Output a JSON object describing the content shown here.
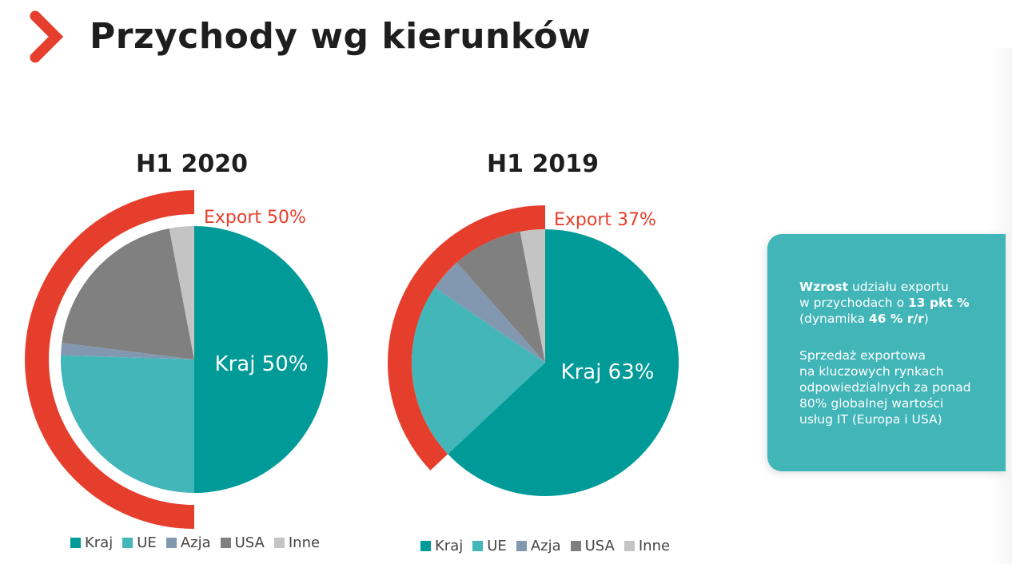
{
  "page": {
    "title": "Przychody wg kierunków",
    "accent_color": "#e63e2c"
  },
  "chart_data": [
    {
      "type": "pie",
      "title": "H1 2020",
      "categories": [
        "Kraj",
        "UE",
        "Azja",
        "USA",
        "Inne"
      ],
      "values": [
        50,
        25.5,
        1.5,
        20,
        3
      ],
      "colors": [
        "#009a98",
        "#42b6b8",
        "#8198b0",
        "#808080",
        "#c4c4c4"
      ],
      "highlight_arc": {
        "label": "Export 50%",
        "value": 50,
        "color": "#e63e2c"
      },
      "inner_label": "Kraj 50%",
      "legend": [
        "Kraj",
        "UE",
        "Azja",
        "USA",
        "Inne"
      ],
      "legend_position": "bottom"
    },
    {
      "type": "pie",
      "title": "H1 2019",
      "categories": [
        "Kraj",
        "UE",
        "Azja",
        "USA",
        "Inne"
      ],
      "values": [
        63,
        21.5,
        4,
        8.5,
        3
      ],
      "colors": [
        "#009a98",
        "#42b6b8",
        "#8198b0",
        "#808080",
        "#c4c4c4"
      ],
      "highlight_arc": {
        "label": "Export 37%",
        "value": 37,
        "color": "#e63e2c"
      },
      "inner_label": "Kraj 63%",
      "legend": [
        "Kraj",
        "UE",
        "Azja",
        "USA",
        "Inne"
      ],
      "legend_position": "bottom"
    }
  ],
  "info_card": {
    "p1_bold1": "Wzrost",
    "p1_text1": " udziału exportu",
    "p1_text2": "w przychodach o ",
    "p1_bold2": "13 pkt %",
    "p1_text3": "(dynamika ",
    "p1_bold3": "46 % r/r",
    "p1_text4": ")",
    "p2_lines": [
      "Sprzedaż exportowa",
      "na kluczowych rynkach",
      "odpowiedzialnych za ponad",
      "80% globalnej wartości",
      "usług IT (Europa i USA)"
    ]
  }
}
